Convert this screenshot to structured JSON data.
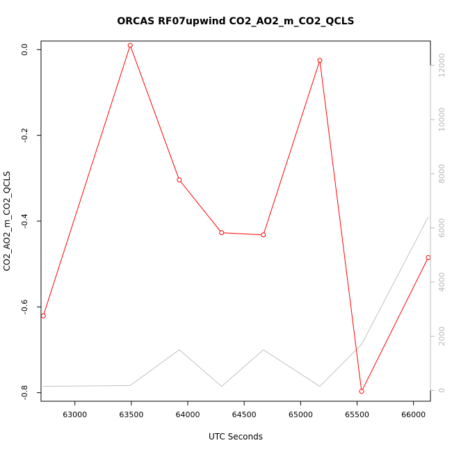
{
  "chart_data": {
    "type": "line",
    "title": "ORCAS RF07upwind CO2_AO2_m_CO2_QCLS",
    "xlabel": "UTC Seconds",
    "ylabel": "CO2_AO2_m_CO2_QCLS",
    "xlim": [
      62700,
      66150
    ],
    "ylim": [
      -0.82,
      0.02
    ],
    "y2lim": [
      -400,
      12900
    ],
    "x_ticks": [
      63000,
      63500,
      64000,
      64500,
      65000,
      65500,
      66000
    ],
    "y_ticks": [
      -0.8,
      -0.6,
      -0.4,
      -0.2,
      0.0
    ],
    "y_tick_labels": [
      "-0.8",
      "-0.6",
      "-0.4",
      "-0.2",
      "0.0"
    ],
    "y2_ticks": [
      0,
      2000,
      4000,
      6000,
      8000,
      10000,
      12000
    ],
    "colors": {
      "primary": "#ff0000",
      "secondary": "#c0c0c0",
      "axis": "#000000",
      "axis_right": "#b8b8b8"
    },
    "series": [
      {
        "axis": "left",
        "color": "#ff0000",
        "markers": true,
        "x": [
          62720,
          63490,
          63925,
          64300,
          64670,
          65170,
          65540,
          66130
        ],
        "y": [
          -0.621,
          0.01,
          -0.304,
          -0.427,
          -0.432,
          -0.025,
          -0.797,
          -0.485
        ]
      },
      {
        "axis": "right",
        "color": "#c0c0c0",
        "markers": false,
        "x": [
          62720,
          63490,
          63925,
          64300,
          64670,
          65170,
          65540,
          66130
        ],
        "y": [
          150,
          180,
          1500,
          150,
          1500,
          150,
          1700,
          6400
        ]
      }
    ]
  }
}
